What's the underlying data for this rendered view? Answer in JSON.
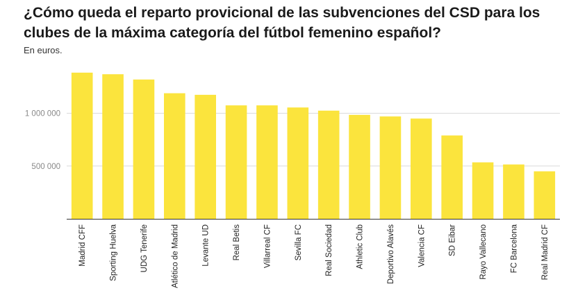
{
  "header": {
    "title": "¿Cómo queda el reparto provicional de las subvenciones del CSD para los clubes de la máxima categoría del fútbol femenino español?",
    "subtitle": "En euros."
  },
  "colors": {
    "bar": "#fbe43d",
    "grid": "#d9d9d9",
    "axis": "#333333"
  },
  "chart_data": {
    "type": "bar",
    "title": "¿Cómo queda el reparto provicional de las subvenciones del CSD para los clubes de la máxima categoría del fútbol femenino español?",
    "subtitle": "En euros.",
    "xlabel": "",
    "ylabel": "",
    "ylim": [
      0,
      1450000
    ],
    "yticks": [
      500000,
      1000000
    ],
    "ytick_labels": [
      "500 000",
      "1 000 000"
    ],
    "grid": true,
    "categories": [
      "Madrid CFF",
      "Sporting Huelva",
      "UDG Tenerife",
      "Atlético de Madrid",
      "Levante UD",
      "Real Betis",
      "Villarreal CF",
      "Sevilla FC",
      "Real Sociedad",
      "Athletic Club",
      "Deportivo Alavés",
      "Valencia CF",
      "SD Eibar",
      "Rayo Vallecano",
      "FC Barcelona",
      "Real Madrid CF"
    ],
    "values": [
      1385000,
      1370000,
      1320000,
      1190000,
      1175000,
      1075000,
      1075000,
      1055000,
      1025000,
      985000,
      970000,
      950000,
      790000,
      535000,
      515000,
      450000
    ]
  }
}
